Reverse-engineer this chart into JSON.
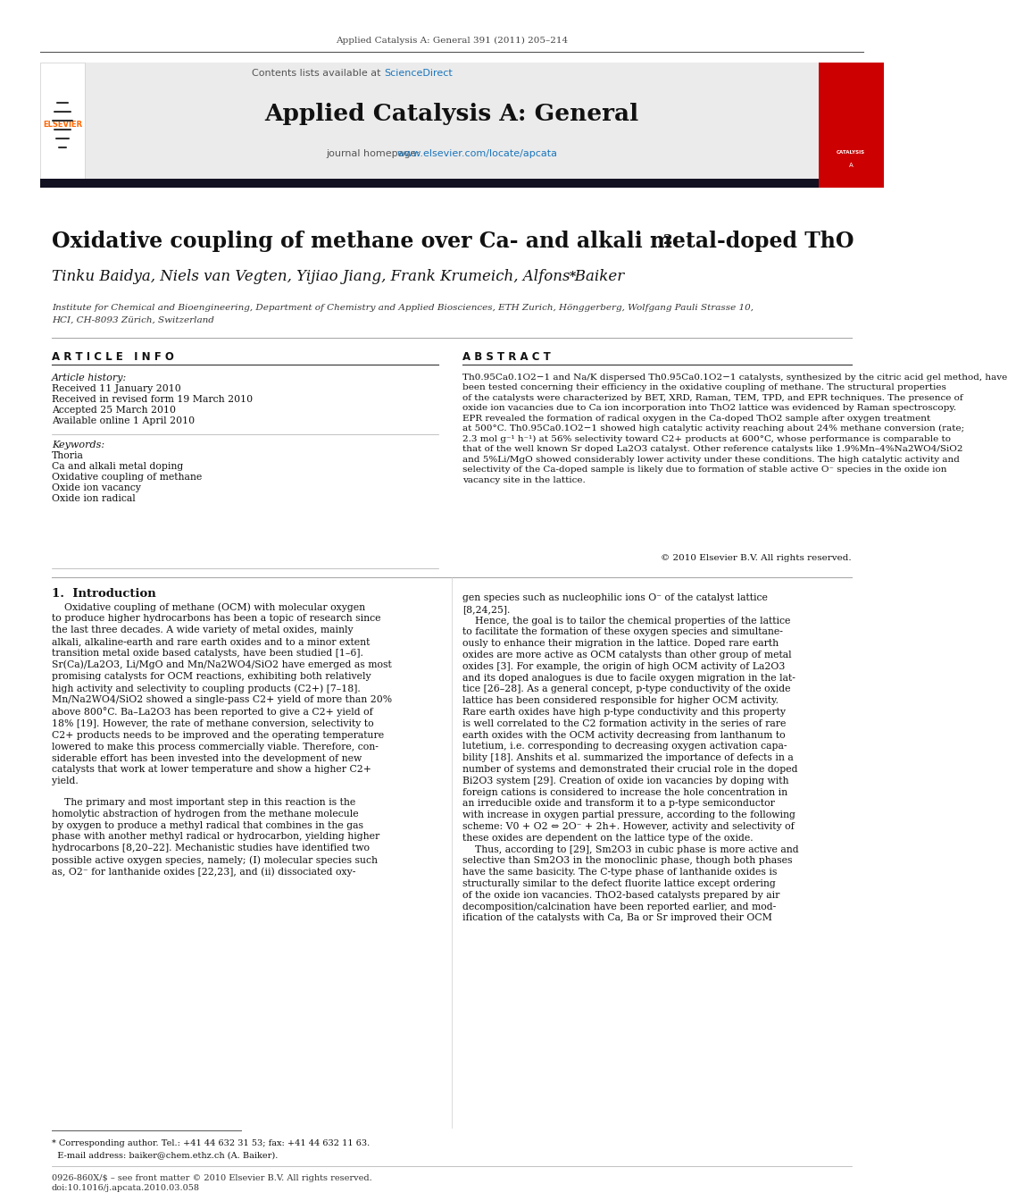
{
  "bg_color": "#ffffff",
  "header_journal_line": "Applied Catalysis A: General 391 (2011) 205–214",
  "journal_title": "Applied Catalysis A: General",
  "contents_text": "Contents lists available at",
  "sciencedirect_text": "ScienceDirect",
  "homepage_text": "journal homepage: ",
  "homepage_url": "www.elsevier.com/locate/apcata",
  "article_title": "Oxidative coupling of methane over Ca- and alkali metal-doped ThO",
  "article_title_sub2": "2",
  "authors": "Tinku Baidya, Niels van Vegten, Yijiao Jiang, Frank Krumeich, Alfons Baiker",
  "authors_star": "*",
  "affiliation_line1": "Institute for Chemical and Bioengineering, Department of Chemistry and Applied Biosciences, ETH Zurich, Hönggerberg, Wolfgang Pauli Strasse 10,",
  "affiliation_line2": "HCI, CH-8093 Zürich, Switzerland",
  "article_info_label": "A R T I C L E   I N F O",
  "abstract_label": "A B S T R A C T",
  "article_history_label": "Article history:",
  "history_items": [
    "Received 11 January 2010",
    "Received in revised form 19 March 2010",
    "Accepted 25 March 2010",
    "Available online 1 April 2010"
  ],
  "keywords_label": "Keywords:",
  "keywords": [
    "Thoria",
    "Ca and alkali metal doping",
    "Oxidative coupling of methane",
    "Oxide ion vacancy",
    "Oxide ion radical"
  ],
  "abstract_text": "Th0.95Ca0.1O2−1 and Na/K dispersed Th0.95Ca0.1O2−1 catalysts, synthesized by the citric acid gel method, have\nbeen tested concerning their efficiency in the oxidative coupling of methane. The structural properties\nof the catalysts were characterized by BET, XRD, Raman, TEM, TPD, and EPR techniques. The presence of\noxide ion vacancies due to Ca ion incorporation into ThO2 lattice was evidenced by Raman spectroscopy.\nEPR revealed the formation of radical oxygen in the Ca-doped ThO2 sample after oxygen treatment\nat 500°C. Th0.95Ca0.1O2−1 showed high catalytic activity reaching about 24% methane conversion (rate;\n2.3 mol g⁻¹ h⁻¹) at 56% selectivity toward C2+ products at 600°C, whose performance is comparable to\nthat of the well known Sr doped La2O3 catalyst. Other reference catalysts like 1.9%Mn–4%Na2WO4/SiO2\nand 5%Li/MgO showed considerably lower activity under these conditions. The high catalytic activity and\nselectivity of the Ca-doped sample is likely due to formation of stable active O⁻ species in the oxide ion\nvacancy site in the lattice.",
  "copyright_text": "© 2010 Elsevier B.V. All rights reserved.",
  "intro_heading": "1.  Introduction",
  "intro_col1_p1": "    Oxidative coupling of methane (OCM) with molecular oxygen\nto produce higher hydrocarbons has been a topic of research since\nthe last three decades. A wide variety of metal oxides, mainly\nalkali, alkaline-earth and rare earth oxides and to a minor extent\ntransition metal oxide based catalysts, have been studied [1–6].\nSr(Ca)/La2O3, Li/MgO and Mn/Na2WO4/SiO2 have emerged as most\npromising catalysts for OCM reactions, exhibiting both relatively\nhigh activity and selectivity to coupling products (C2+) [7–18].\nMn/Na2WO4/SiO2 showed a single-pass C2+ yield of more than 20%\nabove 800°C. Ba–La2O3 has been reported to give a C2+ yield of\n18% [19]. However, the rate of methane conversion, selectivity to\nC2+ products needs to be improved and the operating temperature\nlowered to make this process commercially viable. Therefore, con-\nsiderable effort has been invested into the development of new\ncatalysts that work at lower temperature and show a higher C2+\nyield.",
  "intro_col1_p2": "    The primary and most important step in this reaction is the\nhomolytic abstraction of hydrogen from the methane molecule\nby oxygen to produce a methyl radical that combines in the gas\nphase with another methyl radical or hydrocarbon, yielding higher\nhydrocarbons [8,20–22]. Mechanistic studies have identified two\npossible active oxygen species, namely; (I) molecular species such\nas, O2⁻ for lanthanide oxides [22,23], and (ii) dissociated oxy-",
  "intro_col2": "gen species such as nucleophilic ions O⁻ of the catalyst lattice\n[8,24,25].\n    Hence, the goal is to tailor the chemical properties of the lattice\nto facilitate the formation of these oxygen species and simultane-\nously to enhance their migration in the lattice. Doped rare earth\noxides are more active as OCM catalysts than other group of metal\noxides [3]. For example, the origin of high OCM activity of La2O3\nand its doped analogues is due to facile oxygen migration in the lat-\ntice [26–28]. As a general concept, p-type conductivity of the oxide\nlattice has been considered responsible for higher OCM activity.\nRare earth oxides have high p-type conductivity and this property\nis well correlated to the C2 formation activity in the series of rare\nearth oxides with the OCM activity decreasing from lanthanum to\nlutetium, i.e. corresponding to decreasing oxygen activation capa-\nbility [18]. Anshits et al. summarized the importance of defects in a\nnumber of systems and demonstrated their crucial role in the doped\nBi2O3 system [29]. Creation of oxide ion vacancies by doping with\nforeign cations is considered to increase the hole concentration in\nan irreducible oxide and transform it to a p-type semiconductor\nwith increase in oxygen partial pressure, according to the following\nscheme: V0 + O2 ⇔ 2O⁻ + 2h+. However, activity and selectivity of\nthese oxides are dependent on the lattice type of the oxide.\n    Thus, according to [29], Sm2O3 in cubic phase is more active and\nselective than Sm2O3 in the monoclinic phase, though both phases\nhave the same basicity. The C-type phase of lanthanide oxides is\nstructurally similar to the defect fluorite lattice except ordering\nof the oxide ion vacancies. ThO2-based catalysts prepared by air\ndecomposition/calcination have been reported earlier, and mod-\nification of the catalysts with Ca, Ba or Sr improved their OCM",
  "footnote_line1": "* Corresponding author. Tel.: +41 44 632 31 53; fax: +41 44 632 11 63.",
  "footnote_line2": "  E-mail address: baiker@chem.ethz.ch (A. Baiker).",
  "footer_line1": "0926-860X/$ – see front matter © 2010 Elsevier B.V. All rights reserved.",
  "footer_line2": "doi:10.1016/j.apcata.2010.03.058",
  "elsevier_color": "#ff6600",
  "sciencedirect_color": "#1a75bc",
  "header_bg": "#e8e8e8",
  "dark_bar_color": "#1a1a2e",
  "red_cover_color": "#cc0000"
}
